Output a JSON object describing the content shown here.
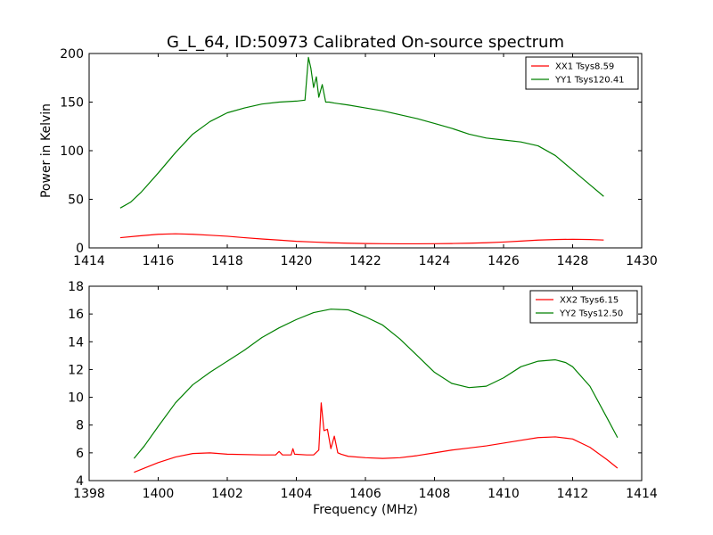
{
  "chart_data": [
    {
      "type": "line",
      "title": "G_L_64, ID:50973 Calibrated On-source spectrum",
      "xlabel": "",
      "ylabel": "Power in Kelvin",
      "xlim": [
        1414,
        1430
      ],
      "ylim": [
        0,
        200
      ],
      "xticks": [
        1414,
        1416,
        1418,
        1420,
        1422,
        1424,
        1426,
        1428,
        1430
      ],
      "yticks": [
        0,
        50,
        100,
        150,
        200
      ],
      "legend": "top-right",
      "grid": false,
      "series": [
        {
          "name": "XX1 Tsys8.59",
          "color": "#ff0000",
          "x": [
            1414.9,
            1415.5,
            1416.0,
            1416.5,
            1417.0,
            1417.5,
            1418.0,
            1418.5,
            1419.0,
            1419.5,
            1420.0,
            1420.5,
            1421.0,
            1421.5,
            1422.0,
            1422.5,
            1423.0,
            1423.5,
            1424.0,
            1424.5,
            1425.0,
            1425.5,
            1426.0,
            1426.5,
            1427.0,
            1427.5,
            1428.0,
            1428.5,
            1428.9
          ],
          "y": [
            10.5,
            12.5,
            14.0,
            14.5,
            14.0,
            13.0,
            12.0,
            10.5,
            9.2,
            8.0,
            6.8,
            6.0,
            5.3,
            4.8,
            4.5,
            4.3,
            4.2,
            4.2,
            4.3,
            4.5,
            4.8,
            5.3,
            6.0,
            7.0,
            8.0,
            8.6,
            8.9,
            8.6,
            8.1
          ]
        },
        {
          "name": "YY1 Tsys120.41",
          "color": "#008000",
          "x": [
            1414.9,
            1415.2,
            1415.5,
            1416.0,
            1416.5,
            1417.0,
            1417.5,
            1418.0,
            1418.5,
            1419.0,
            1419.5,
            1420.0,
            1420.25,
            1420.35,
            1420.42,
            1420.5,
            1420.58,
            1420.65,
            1420.75,
            1420.85,
            1420.95,
            1421.1,
            1421.5,
            1422.0,
            1422.5,
            1423.0,
            1423.5,
            1424.0,
            1424.5,
            1425.0,
            1425.5,
            1426.0,
            1426.5,
            1427.0,
            1427.5,
            1428.0,
            1428.5,
            1428.9
          ],
          "y": [
            41,
            47,
            57,
            77,
            98,
            117,
            130,
            139,
            144,
            148,
            150,
            151,
            152,
            196,
            185,
            165,
            176,
            155,
            168,
            150,
            150,
            149,
            147,
            144,
            141,
            137,
            133,
            128,
            123,
            117,
            113,
            111,
            109,
            105,
            95,
            80,
            65,
            53
          ]
        }
      ]
    },
    {
      "type": "line",
      "title": "",
      "xlabel": "Frequency (MHz)",
      "ylabel": "",
      "xlim": [
        1398,
        1414
      ],
      "ylim": [
        4,
        18
      ],
      "xticks": [
        1398,
        1400,
        1402,
        1404,
        1406,
        1408,
        1410,
        1412,
        1414
      ],
      "yticks": [
        4,
        6,
        8,
        10,
        12,
        14,
        16,
        18
      ],
      "legend": "top-right",
      "grid": false,
      "series": [
        {
          "name": "XX2 Tsys6.15",
          "color": "#ff0000",
          "x": [
            1399.3,
            1399.7,
            1400.0,
            1400.5,
            1401.0,
            1401.5,
            1402.0,
            1403.0,
            1403.4,
            1403.5,
            1403.6,
            1403.85,
            1403.9,
            1403.95,
            1404.3,
            1404.5,
            1404.65,
            1404.72,
            1404.8,
            1404.9,
            1405.0,
            1405.1,
            1405.2,
            1405.3,
            1405.5,
            1406.0,
            1406.5,
            1407.0,
            1407.5,
            1408.0,
            1408.5,
            1409.0,
            1409.5,
            1410.0,
            1410.5,
            1411.0,
            1411.5,
            1412.0,
            1412.5,
            1413.0,
            1413.3
          ],
          "y": [
            4.6,
            5.0,
            5.3,
            5.7,
            5.95,
            6.0,
            5.9,
            5.85,
            5.85,
            6.1,
            5.85,
            5.85,
            6.3,
            5.9,
            5.85,
            5.85,
            6.2,
            9.6,
            7.6,
            7.7,
            6.3,
            7.2,
            6.0,
            5.9,
            5.75,
            5.65,
            5.6,
            5.65,
            5.8,
            6.0,
            6.2,
            6.35,
            6.5,
            6.7,
            6.9,
            7.1,
            7.15,
            7.0,
            6.4,
            5.5,
            4.9
          ]
        },
        {
          "name": "YY2 Tsys12.50",
          "color": "#008000",
          "x": [
            1399.3,
            1399.6,
            1400.0,
            1400.5,
            1401.0,
            1401.5,
            1402.0,
            1402.5,
            1403.0,
            1403.5,
            1404.0,
            1404.5,
            1405.0,
            1405.5,
            1406.0,
            1406.5,
            1407.0,
            1407.5,
            1408.0,
            1408.5,
            1409.0,
            1409.5,
            1410.0,
            1410.5,
            1411.0,
            1411.5,
            1411.8,
            1412.0,
            1412.5,
            1413.0,
            1413.3
          ],
          "y": [
            5.6,
            6.5,
            7.9,
            9.6,
            10.9,
            11.8,
            12.6,
            13.4,
            14.3,
            15.0,
            15.6,
            16.1,
            16.35,
            16.3,
            15.8,
            15.2,
            14.2,
            13.0,
            11.8,
            11.0,
            10.7,
            10.8,
            11.4,
            12.2,
            12.6,
            12.7,
            12.5,
            12.2,
            10.8,
            8.5,
            7.1
          ]
        }
      ]
    }
  ]
}
